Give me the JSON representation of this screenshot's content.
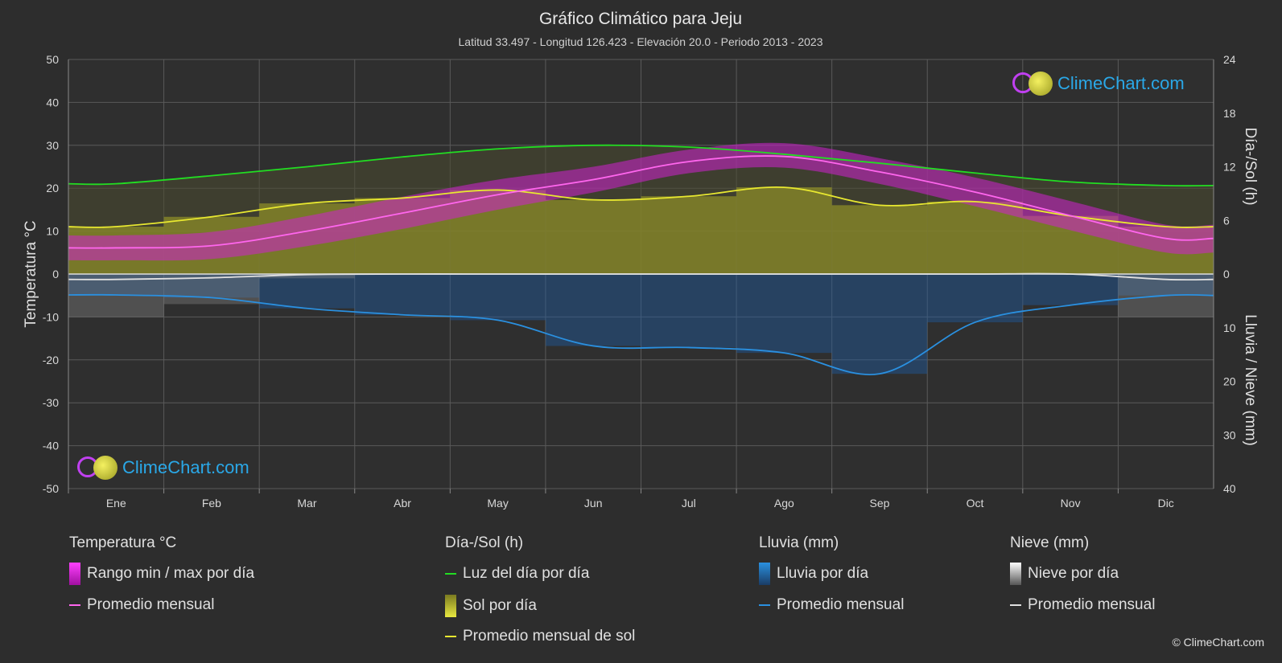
{
  "chart_data": {
    "type": "line",
    "title": "Gráfico Climático para Jeju",
    "subtitle": "Latitud 33.497 - Longitud 126.423 - Elevación 20.0 - Periodo 2013 - 2023",
    "categories": [
      "Ene",
      "Feb",
      "Mar",
      "Abr",
      "May",
      "Jun",
      "Jul",
      "Ago",
      "Sep",
      "Oct",
      "Nov",
      "Dic"
    ],
    "y_left": {
      "label": "Temperatura °C",
      "range": [
        -50,
        50
      ],
      "ticks": [
        50,
        40,
        30,
        20,
        10,
        0,
        -10,
        -20,
        -30,
        -40,
        -50
      ]
    },
    "y_right_top": {
      "label": "Día-/Sol (h)",
      "range": [
        0,
        24
      ],
      "ticks": [
        24,
        18,
        12,
        6,
        0
      ]
    },
    "y_right_bottom": {
      "label": "Lluvia / Nieve (mm)",
      "range": [
        0,
        40
      ],
      "ticks": [
        0,
        10,
        20,
        30,
        40
      ]
    },
    "grid": true,
    "series": [
      {
        "name": "Luz del día por día",
        "axis": "sun_hours",
        "color": "#22dd22",
        "values": [
          10.1,
          11.0,
          12.0,
          13.1,
          14.0,
          14.4,
          14.2,
          13.4,
          12.4,
          11.3,
          10.3,
          9.9
        ]
      },
      {
        "name": "Promedio mensual de sol",
        "axis": "sun_hours",
        "color": "#e8e830",
        "values": [
          5.3,
          6.4,
          7.9,
          8.5,
          9.4,
          8.3,
          8.7,
          9.7,
          7.7,
          8.1,
          6.5,
          5.3
        ]
      },
      {
        "name": "Promedio mensual",
        "axis": "temperature",
        "color": "#ff66ee",
        "values": [
          6.1,
          6.6,
          10.0,
          14.2,
          18.5,
          22.0,
          26.2,
          27.4,
          23.8,
          19.1,
          13.6,
          8.3
        ]
      },
      {
        "name": "Promedio mensual",
        "axis": "rain_mm",
        "color": "#2a90e0",
        "values": [
          3.9,
          4.4,
          6.4,
          7.6,
          8.6,
          13.4,
          13.7,
          14.7,
          18.6,
          9.0,
          5.8,
          4.0
        ]
      },
      {
        "name": "Promedio mensual",
        "axis": "snow_mm",
        "color": "#e0e0e0",
        "values": [
          1.0,
          0.7,
          0.1,
          0.0,
          0.0,
          0.0,
          0.0,
          0.0,
          0.0,
          0.0,
          0.0,
          1.0
        ]
      }
    ],
    "temp_range": {
      "name": "Rango min / max por día",
      "min": [
        3.2,
        3.5,
        6.5,
        10.5,
        15.0,
        19.0,
        23.5,
        24.8,
        21.0,
        15.8,
        10.2,
        5.0
      ],
      "max": [
        9.0,
        9.8,
        13.5,
        18.0,
        22.0,
        25.0,
        29.0,
        30.5,
        27.0,
        22.5,
        17.0,
        11.5
      ]
    }
  },
  "legend": {
    "temperature": {
      "title": "Temperatura °C",
      "items": [
        "Rango min / max por día",
        "Promedio mensual"
      ]
    },
    "sun": {
      "title": "Día-/Sol (h)",
      "items": [
        "Luz del día por día",
        "Sol por día",
        "Promedio mensual de sol"
      ]
    },
    "rain": {
      "title": "Lluvia (mm)",
      "items": [
        "Lluvia por día",
        "Promedio mensual"
      ]
    },
    "snow": {
      "title": "Nieve (mm)",
      "items": [
        "Nieve por día",
        "Promedio mensual"
      ]
    }
  },
  "brand": {
    "logo_text": "ClimeChart.com",
    "copyright": "© ClimeChart.com"
  },
  "colors": {
    "background": "#2d2d2d",
    "grid": "#5a5a5a",
    "temp_range": "#d020d0",
    "sun_fill": "#8c8c28",
    "rain_fill": "#1e5aa0",
    "snow_fill": "#909090",
    "brand": "#2aa8e8"
  }
}
